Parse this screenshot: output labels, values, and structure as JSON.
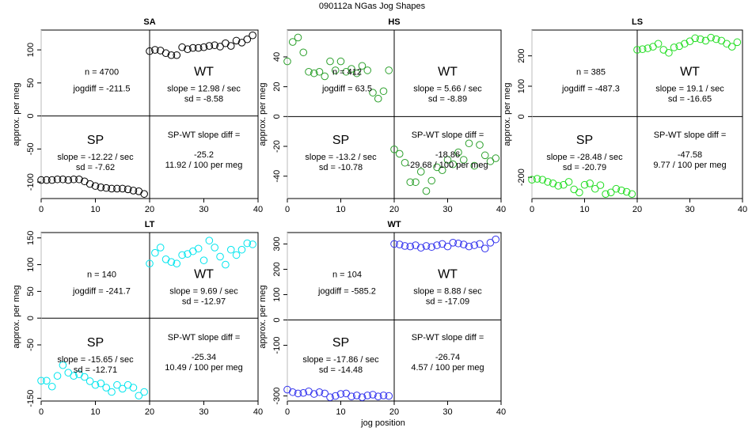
{
  "page": {
    "title": "090112a    NGas Jog Shapes",
    "xlabel": "jog position"
  },
  "chart_data": [
    {
      "type": "scatter",
      "key": "sa",
      "title": "SA",
      "ylabel": "approx. per meg",
      "color": "#000000",
      "xlim": [
        0,
        40
      ],
      "ylim": [
        -125,
        130
      ],
      "xticks": [
        0,
        10,
        20,
        30,
        40
      ],
      "yticks": [
        -100,
        -50,
        0,
        50,
        100
      ],
      "n_label": "n = 4700",
      "jogdiff_label": "jogdiff = -211.5",
      "sp": {
        "label": "SP",
        "slope": "slope = -12.22 / sec",
        "sd": "sd = -7.62"
      },
      "wt": {
        "label": "WT",
        "slope": "slope = 12.98 / sec",
        "sd": "sd = -8.58"
      },
      "diff": {
        "label": "SP-WT slope diff =",
        "value": "-25.2",
        "per": "11.92 / 100 per meg"
      },
      "points": [
        [
          0,
          -97
        ],
        [
          1,
          -97
        ],
        [
          2,
          -97
        ],
        [
          3,
          -96
        ],
        [
          4,
          -96
        ],
        [
          5,
          -97
        ],
        [
          6,
          -96
        ],
        [
          7,
          -96
        ],
        [
          8,
          -99
        ],
        [
          9,
          -103
        ],
        [
          10,
          -106
        ],
        [
          11,
          -108
        ],
        [
          12,
          -109
        ],
        [
          13,
          -110
        ],
        [
          14,
          -110
        ],
        [
          15,
          -110
        ],
        [
          16,
          -111
        ],
        [
          17,
          -113
        ],
        [
          18,
          -114
        ],
        [
          19,
          -118
        ],
        [
          20,
          98
        ],
        [
          21,
          100
        ],
        [
          22,
          99
        ],
        [
          23,
          95
        ],
        [
          24,
          92
        ],
        [
          25,
          92
        ],
        [
          26,
          104
        ],
        [
          27,
          101
        ],
        [
          28,
          103
        ],
        [
          29,
          103
        ],
        [
          30,
          104
        ],
        [
          31,
          106
        ],
        [
          32,
          107
        ],
        [
          33,
          105
        ],
        [
          34,
          110
        ],
        [
          35,
          106
        ],
        [
          36,
          114
        ],
        [
          37,
          111
        ],
        [
          38,
          116
        ],
        [
          39,
          122
        ]
      ]
    },
    {
      "type": "scatter",
      "key": "hs",
      "title": "HS",
      "ylabel": "approx. per meg",
      "color": "#2ca02c",
      "xlim": [
        0,
        40
      ],
      "ylim": [
        -55,
        58
      ],
      "xticks": [
        0,
        10,
        20,
        30,
        40
      ],
      "yticks": [
        -40,
        -20,
        0,
        20,
        40
      ],
      "n_label": "n = 412",
      "jogdiff_label": "jogdiff = 63.5",
      "sp": {
        "label": "SP",
        "slope": "slope = -13.2 / sec",
        "sd": "sd = -10.78"
      },
      "wt": {
        "label": "WT",
        "slope": "slope = 5.66 / sec",
        "sd": "sd = -8.89"
      },
      "diff": {
        "label": "SP-WT slope diff =",
        "value": "-18.86",
        "per": "-29.68 / 100 per meg"
      },
      "points": [
        [
          0,
          37
        ],
        [
          1,
          50
        ],
        [
          2,
          53
        ],
        [
          3,
          43
        ],
        [
          4,
          30
        ],
        [
          5,
          29
        ],
        [
          6,
          30
        ],
        [
          7,
          27
        ],
        [
          8,
          37
        ],
        [
          9,
          31
        ],
        [
          10,
          37
        ],
        [
          11,
          30
        ],
        [
          12,
          32
        ],
        [
          13,
          29
        ],
        [
          14,
          34
        ],
        [
          15,
          31
        ],
        [
          16,
          16
        ],
        [
          17,
          12
        ],
        [
          18,
          17
        ],
        [
          19,
          31
        ],
        [
          20,
          -22
        ],
        [
          21,
          -25
        ],
        [
          22,
          -31
        ],
        [
          23,
          -44
        ],
        [
          24,
          -44
        ],
        [
          25,
          -37
        ],
        [
          26,
          -50
        ],
        [
          27,
          -43
        ],
        [
          28,
          -34
        ],
        [
          29,
          -36
        ],
        [
          30,
          -29
        ],
        [
          31,
          -32
        ],
        [
          32,
          -24
        ],
        [
          33,
          -29
        ],
        [
          34,
          -18
        ],
        [
          35,
          -33
        ],
        [
          36,
          -19
        ],
        [
          37,
          -26
        ],
        [
          38,
          -30
        ],
        [
          39,
          -28
        ]
      ]
    },
    {
      "type": "scatter",
      "key": "ls",
      "title": "LS",
      "ylabel": "approx. per meg",
      "color": "#22dd22",
      "xlim": [
        0,
        40
      ],
      "ylim": [
        -270,
        285
      ],
      "xticks": [
        0,
        10,
        20,
        30,
        40
      ],
      "yticks": [
        -200,
        0,
        100,
        200
      ],
      "n_label": "n = 385",
      "jogdiff_label": "jogdiff = -487.3",
      "sp": {
        "label": "SP",
        "slope": "slope = -28.48 / sec",
        "sd": "sd = -20.79"
      },
      "wt": {
        "label": "WT",
        "slope": "slope = 19.1 / sec",
        "sd": "sd = -16.65"
      },
      "diff": {
        "label": "SP-WT slope diff =",
        "value": "-47.58",
        "per": "9.77 / 100 per meg"
      },
      "points": [
        [
          0,
          -208
        ],
        [
          1,
          -205
        ],
        [
          2,
          -208
        ],
        [
          3,
          -215
        ],
        [
          4,
          -220
        ],
        [
          5,
          -228
        ],
        [
          6,
          -225
        ],
        [
          7,
          -215
        ],
        [
          8,
          -240
        ],
        [
          9,
          -250
        ],
        [
          10,
          -225
        ],
        [
          11,
          -220
        ],
        [
          12,
          -238
        ],
        [
          13,
          -226
        ],
        [
          14,
          -255
        ],
        [
          15,
          -250
        ],
        [
          16,
          -238
        ],
        [
          17,
          -243
        ],
        [
          18,
          -248
        ],
        [
          19,
          -255
        ],
        [
          20,
          220
        ],
        [
          21,
          222
        ],
        [
          22,
          225
        ],
        [
          23,
          230
        ],
        [
          24,
          240
        ],
        [
          25,
          220
        ],
        [
          26,
          210
        ],
        [
          27,
          228
        ],
        [
          28,
          232
        ],
        [
          29,
          240
        ],
        [
          30,
          248
        ],
        [
          31,
          258
        ],
        [
          32,
          255
        ],
        [
          33,
          250
        ],
        [
          34,
          260
        ],
        [
          35,
          255
        ],
        [
          36,
          250
        ],
        [
          37,
          240
        ],
        [
          38,
          230
        ],
        [
          39,
          245
        ]
      ]
    },
    {
      "type": "scatter",
      "key": "lt",
      "title": "LT",
      "ylabel": "approx. per meg",
      "color": "#00e5ee",
      "xlim": [
        0,
        40
      ],
      "ylim": [
        -155,
        160
      ],
      "xticks": [
        0,
        10,
        20,
        30,
        40
      ],
      "yticks": [
        -150,
        -50,
        0,
        50,
        100,
        150
      ],
      "n_label": "n = 140",
      "jogdiff_label": "jogdiff = -241.7",
      "sp": {
        "label": "SP",
        "slope": "slope = -15.65 / sec",
        "sd": "sd = -12.71"
      },
      "wt": {
        "label": "WT",
        "slope": "slope = 9.69 / sec",
        "sd": "sd = -12.97"
      },
      "diff": {
        "label": "SP-WT slope diff =",
        "value": "-25.34",
        "per": "10.49 / 100 per meg"
      },
      "points": [
        [
          0,
          -117
        ],
        [
          1,
          -117
        ],
        [
          2,
          -128
        ],
        [
          3,
          -108
        ],
        [
          4,
          -88
        ],
        [
          5,
          -102
        ],
        [
          6,
          -108
        ],
        [
          7,
          -105
        ],
        [
          8,
          -110
        ],
        [
          9,
          -118
        ],
        [
          10,
          -125
        ],
        [
          11,
          -122
        ],
        [
          12,
          -130
        ],
        [
          13,
          -138
        ],
        [
          14,
          -125
        ],
        [
          15,
          -132
        ],
        [
          16,
          -125
        ],
        [
          17,
          -130
        ],
        [
          18,
          -145
        ],
        [
          19,
          -138
        ],
        [
          20,
          102
        ],
        [
          21,
          122
        ],
        [
          22,
          132
        ],
        [
          23,
          110
        ],
        [
          24,
          105
        ],
        [
          25,
          102
        ],
        [
          26,
          118
        ],
        [
          27,
          120
        ],
        [
          28,
          125
        ],
        [
          29,
          130
        ],
        [
          30,
          108
        ],
        [
          31,
          145
        ],
        [
          32,
          132
        ],
        [
          33,
          115
        ],
        [
          34,
          100
        ],
        [
          35,
          128
        ],
        [
          36,
          118
        ],
        [
          37,
          128
        ],
        [
          38,
          140
        ],
        [
          39,
          138
        ]
      ]
    },
    {
      "type": "scatter",
      "key": "wt",
      "title": "WT",
      "ylabel": "approx. per meg",
      "color": "#3333ee",
      "xlim": [
        0,
        40
      ],
      "ylim": [
        -320,
        345
      ],
      "xticks": [
        0,
        10,
        20,
        30,
        40
      ],
      "yticks": [
        -300,
        -100,
        0,
        100,
        200,
        300
      ],
      "n_label": "n = 104",
      "jogdiff_label": "jogdiff = -585.2",
      "sp": {
        "label": "SP",
        "slope": "slope = -17.86 / sec",
        "sd": "sd = -14.48"
      },
      "wt": {
        "label": "WT",
        "slope": "slope = 8.88 / sec",
        "sd": "sd = -17.09"
      },
      "diff": {
        "label": "SP-WT slope diff =",
        "value": "-26.74",
        "per": "4.57 / 100 per meg"
      },
      "points": [
        [
          0,
          -275
        ],
        [
          1,
          -285
        ],
        [
          2,
          -290
        ],
        [
          3,
          -288
        ],
        [
          4,
          -282
        ],
        [
          5,
          -292
        ],
        [
          6,
          -285
        ],
        [
          7,
          -290
        ],
        [
          8,
          -305
        ],
        [
          9,
          -300
        ],
        [
          10,
          -292
        ],
        [
          11,
          -290
        ],
        [
          12,
          -302
        ],
        [
          13,
          -298
        ],
        [
          14,
          -305
        ],
        [
          15,
          -298
        ],
        [
          16,
          -295
        ],
        [
          17,
          -302
        ],
        [
          18,
          -298
        ],
        [
          19,
          -300
        ],
        [
          20,
          300
        ],
        [
          21,
          298
        ],
        [
          22,
          292
        ],
        [
          23,
          290
        ],
        [
          24,
          295
        ],
        [
          25,
          285
        ],
        [
          26,
          292
        ],
        [
          27,
          288
        ],
        [
          28,
          295
        ],
        [
          29,
          300
        ],
        [
          30,
          290
        ],
        [
          31,
          305
        ],
        [
          32,
          302
        ],
        [
          33,
          298
        ],
        [
          34,
          290
        ],
        [
          35,
          295
        ],
        [
          36,
          300
        ],
        [
          37,
          282
        ],
        [
          38,
          305
        ],
        [
          39,
          318
        ]
      ]
    }
  ]
}
